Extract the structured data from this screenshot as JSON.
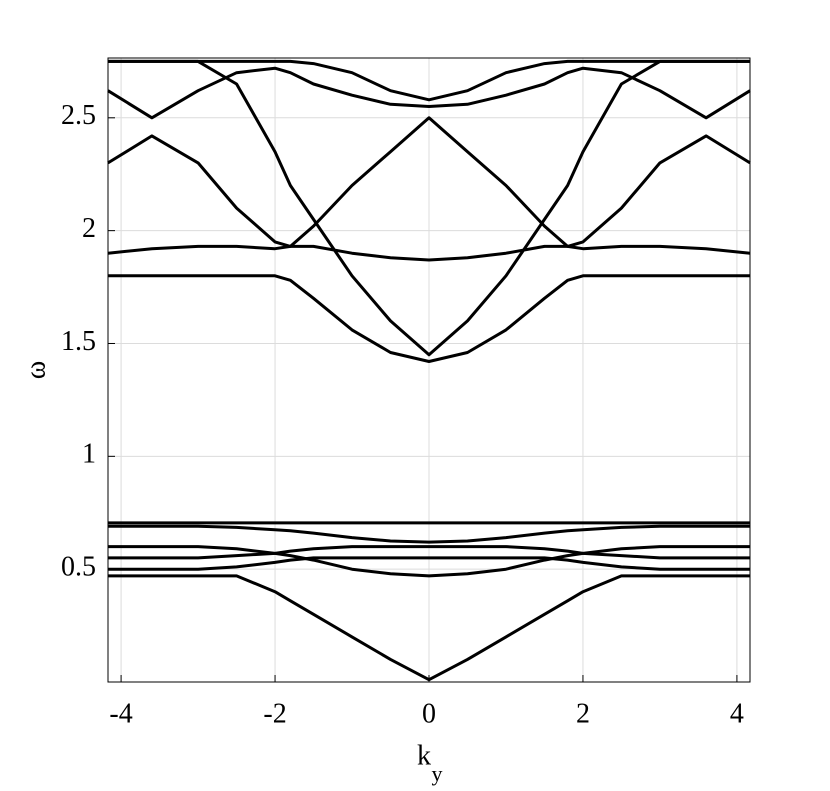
{
  "chart_data": {
    "type": "line",
    "xlabel": "k",
    "xlabel_subscript": "y",
    "ylabel": "ω",
    "x": [
      -4.17,
      -3.6,
      -3,
      -2.5,
      -2,
      -1.8,
      -1.5,
      -1,
      -0.5,
      0,
      0.5,
      1,
      1.5,
      1.8,
      2,
      2.5,
      3,
      3.6,
      4.17
    ],
    "series": [
      {
        "color": "#000000",
        "values": [
          0.47,
          0.47,
          0.47,
          0.47,
          0.4,
          0.36,
          0.3,
          0.2,
          0.1,
          0.01,
          0.1,
          0.2,
          0.3,
          0.36,
          0.4,
          0.47,
          0.47,
          0.47,
          0.47
        ]
      },
      {
        "color": "#000000",
        "values": [
          0.5,
          0.5,
          0.5,
          0.51,
          0.53,
          0.54,
          0.55,
          0.55,
          0.55,
          0.55,
          0.55,
          0.55,
          0.55,
          0.54,
          0.53,
          0.51,
          0.5,
          0.5,
          0.5
        ]
      },
      {
        "color": "#000000",
        "values": [
          0.55,
          0.55,
          0.55,
          0.56,
          0.57,
          0.58,
          0.59,
          0.6,
          0.6,
          0.6,
          0.6,
          0.6,
          0.59,
          0.58,
          0.57,
          0.56,
          0.55,
          0.55,
          0.55
        ]
      },
      {
        "color": "#000000",
        "values": [
          0.6,
          0.6,
          0.6,
          0.59,
          0.57,
          0.56,
          0.54,
          0.5,
          0.48,
          0.47,
          0.48,
          0.5,
          0.54,
          0.56,
          0.57,
          0.59,
          0.6,
          0.6,
          0.6
        ]
      },
      {
        "color": "#000000",
        "values": [
          0.69,
          0.69,
          0.69,
          0.685,
          0.675,
          0.67,
          0.66,
          0.64,
          0.625,
          0.62,
          0.625,
          0.64,
          0.66,
          0.67,
          0.675,
          0.685,
          0.69,
          0.69,
          0.69
        ]
      },
      {
        "color": "#000000",
        "values": [
          0.705,
          0.705,
          0.705,
          0.705,
          0.705,
          0.705,
          0.705,
          0.705,
          0.705,
          0.705,
          0.705,
          0.705,
          0.705,
          0.705,
          0.705,
          0.705,
          0.705,
          0.705,
          0.705
        ]
      },
      {
        "color": "#000000",
        "values": [
          1.8,
          1.8,
          1.8,
          1.8,
          1.8,
          1.78,
          1.7,
          1.56,
          1.46,
          1.42,
          1.46,
          1.56,
          1.7,
          1.78,
          1.8,
          1.8,
          1.8,
          1.8,
          1.8
        ]
      },
      {
        "color": "#000000",
        "values": [
          1.9,
          1.92,
          1.93,
          1.93,
          1.92,
          1.93,
          1.93,
          1.9,
          1.88,
          1.87,
          1.88,
          1.9,
          1.93,
          1.93,
          1.92,
          1.93,
          1.93,
          1.92,
          1.9
        ]
      },
      {
        "color": "#000000",
        "values": [
          2.3,
          2.42,
          2.3,
          2.1,
          1.95,
          1.93,
          2.02,
          2.2,
          2.35,
          2.5,
          2.35,
          2.2,
          2.02,
          1.93,
          1.95,
          2.1,
          2.3,
          2.42,
          2.3
        ]
      },
      {
        "color": "#000000",
        "values": [
          2.75,
          2.75,
          2.75,
          2.65,
          2.35,
          2.2,
          2.05,
          1.8,
          1.6,
          1.45,
          1.6,
          1.8,
          2.05,
          2.2,
          2.35,
          2.65,
          2.75,
          2.75,
          2.75
        ]
      },
      {
        "color": "#000000",
        "values": [
          2.62,
          2.5,
          2.62,
          2.7,
          2.72,
          2.7,
          2.65,
          2.6,
          2.56,
          2.55,
          2.56,
          2.6,
          2.65,
          2.7,
          2.72,
          2.7,
          2.62,
          2.5,
          2.62
        ]
      },
      {
        "color": "#000000",
        "values": [
          2.75,
          2.75,
          2.75,
          2.75,
          2.75,
          2.75,
          2.74,
          2.7,
          2.62,
          2.58,
          2.62,
          2.7,
          2.74,
          2.75,
          2.75,
          2.75,
          2.75,
          2.75,
          2.75
        ]
      }
    ],
    "xlim": [
      -4.17,
      4.17
    ],
    "ylim": [
      0,
      2.765
    ],
    "xticks": [
      -4,
      -2,
      0,
      2,
      4
    ],
    "yticks": [
      0.5,
      1,
      1.5,
      2,
      2.5
    ],
    "grid": true
  }
}
